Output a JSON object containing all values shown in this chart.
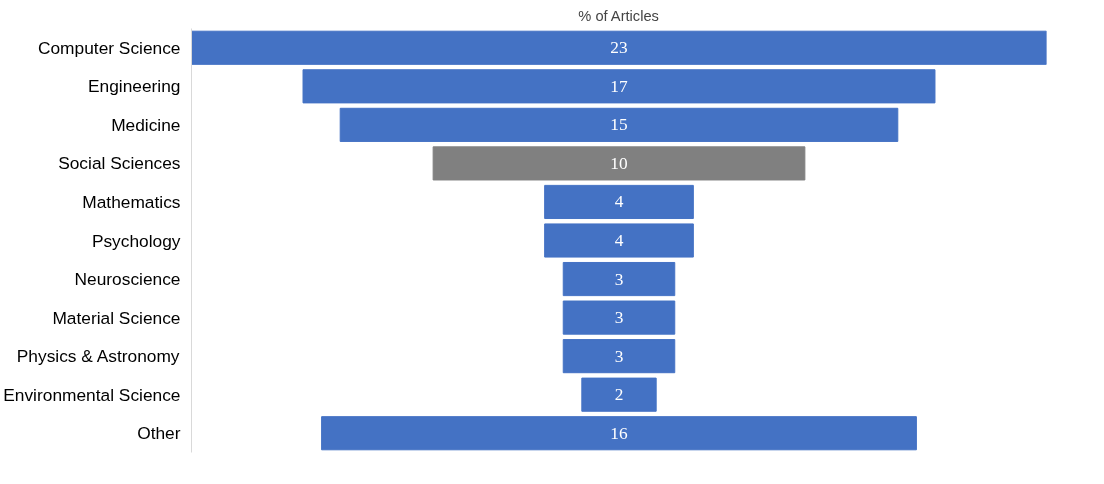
{
  "chart_data": {
    "type": "other",
    "title": "% of Articles",
    "categories": [
      "Computer Science",
      "Engineering",
      "Medicine",
      "Social Sciences",
      "Mathematics",
      "Psychology",
      "Neuroscience",
      "Material Science",
      "Physics & Astronomy",
      "Environmental Science",
      "Other"
    ],
    "values": [
      23,
      17,
      15,
      10,
      4,
      4,
      3,
      3,
      3,
      2,
      16
    ],
    "colors": [
      "#4472c4",
      "#4472c4",
      "#4472c4",
      "#808080",
      "#4472c4",
      "#4472c4",
      "#4472c4",
      "#4472c4",
      "#4472c4",
      "#4472c4",
      "#4472c4"
    ],
    "data_labels": true
  }
}
